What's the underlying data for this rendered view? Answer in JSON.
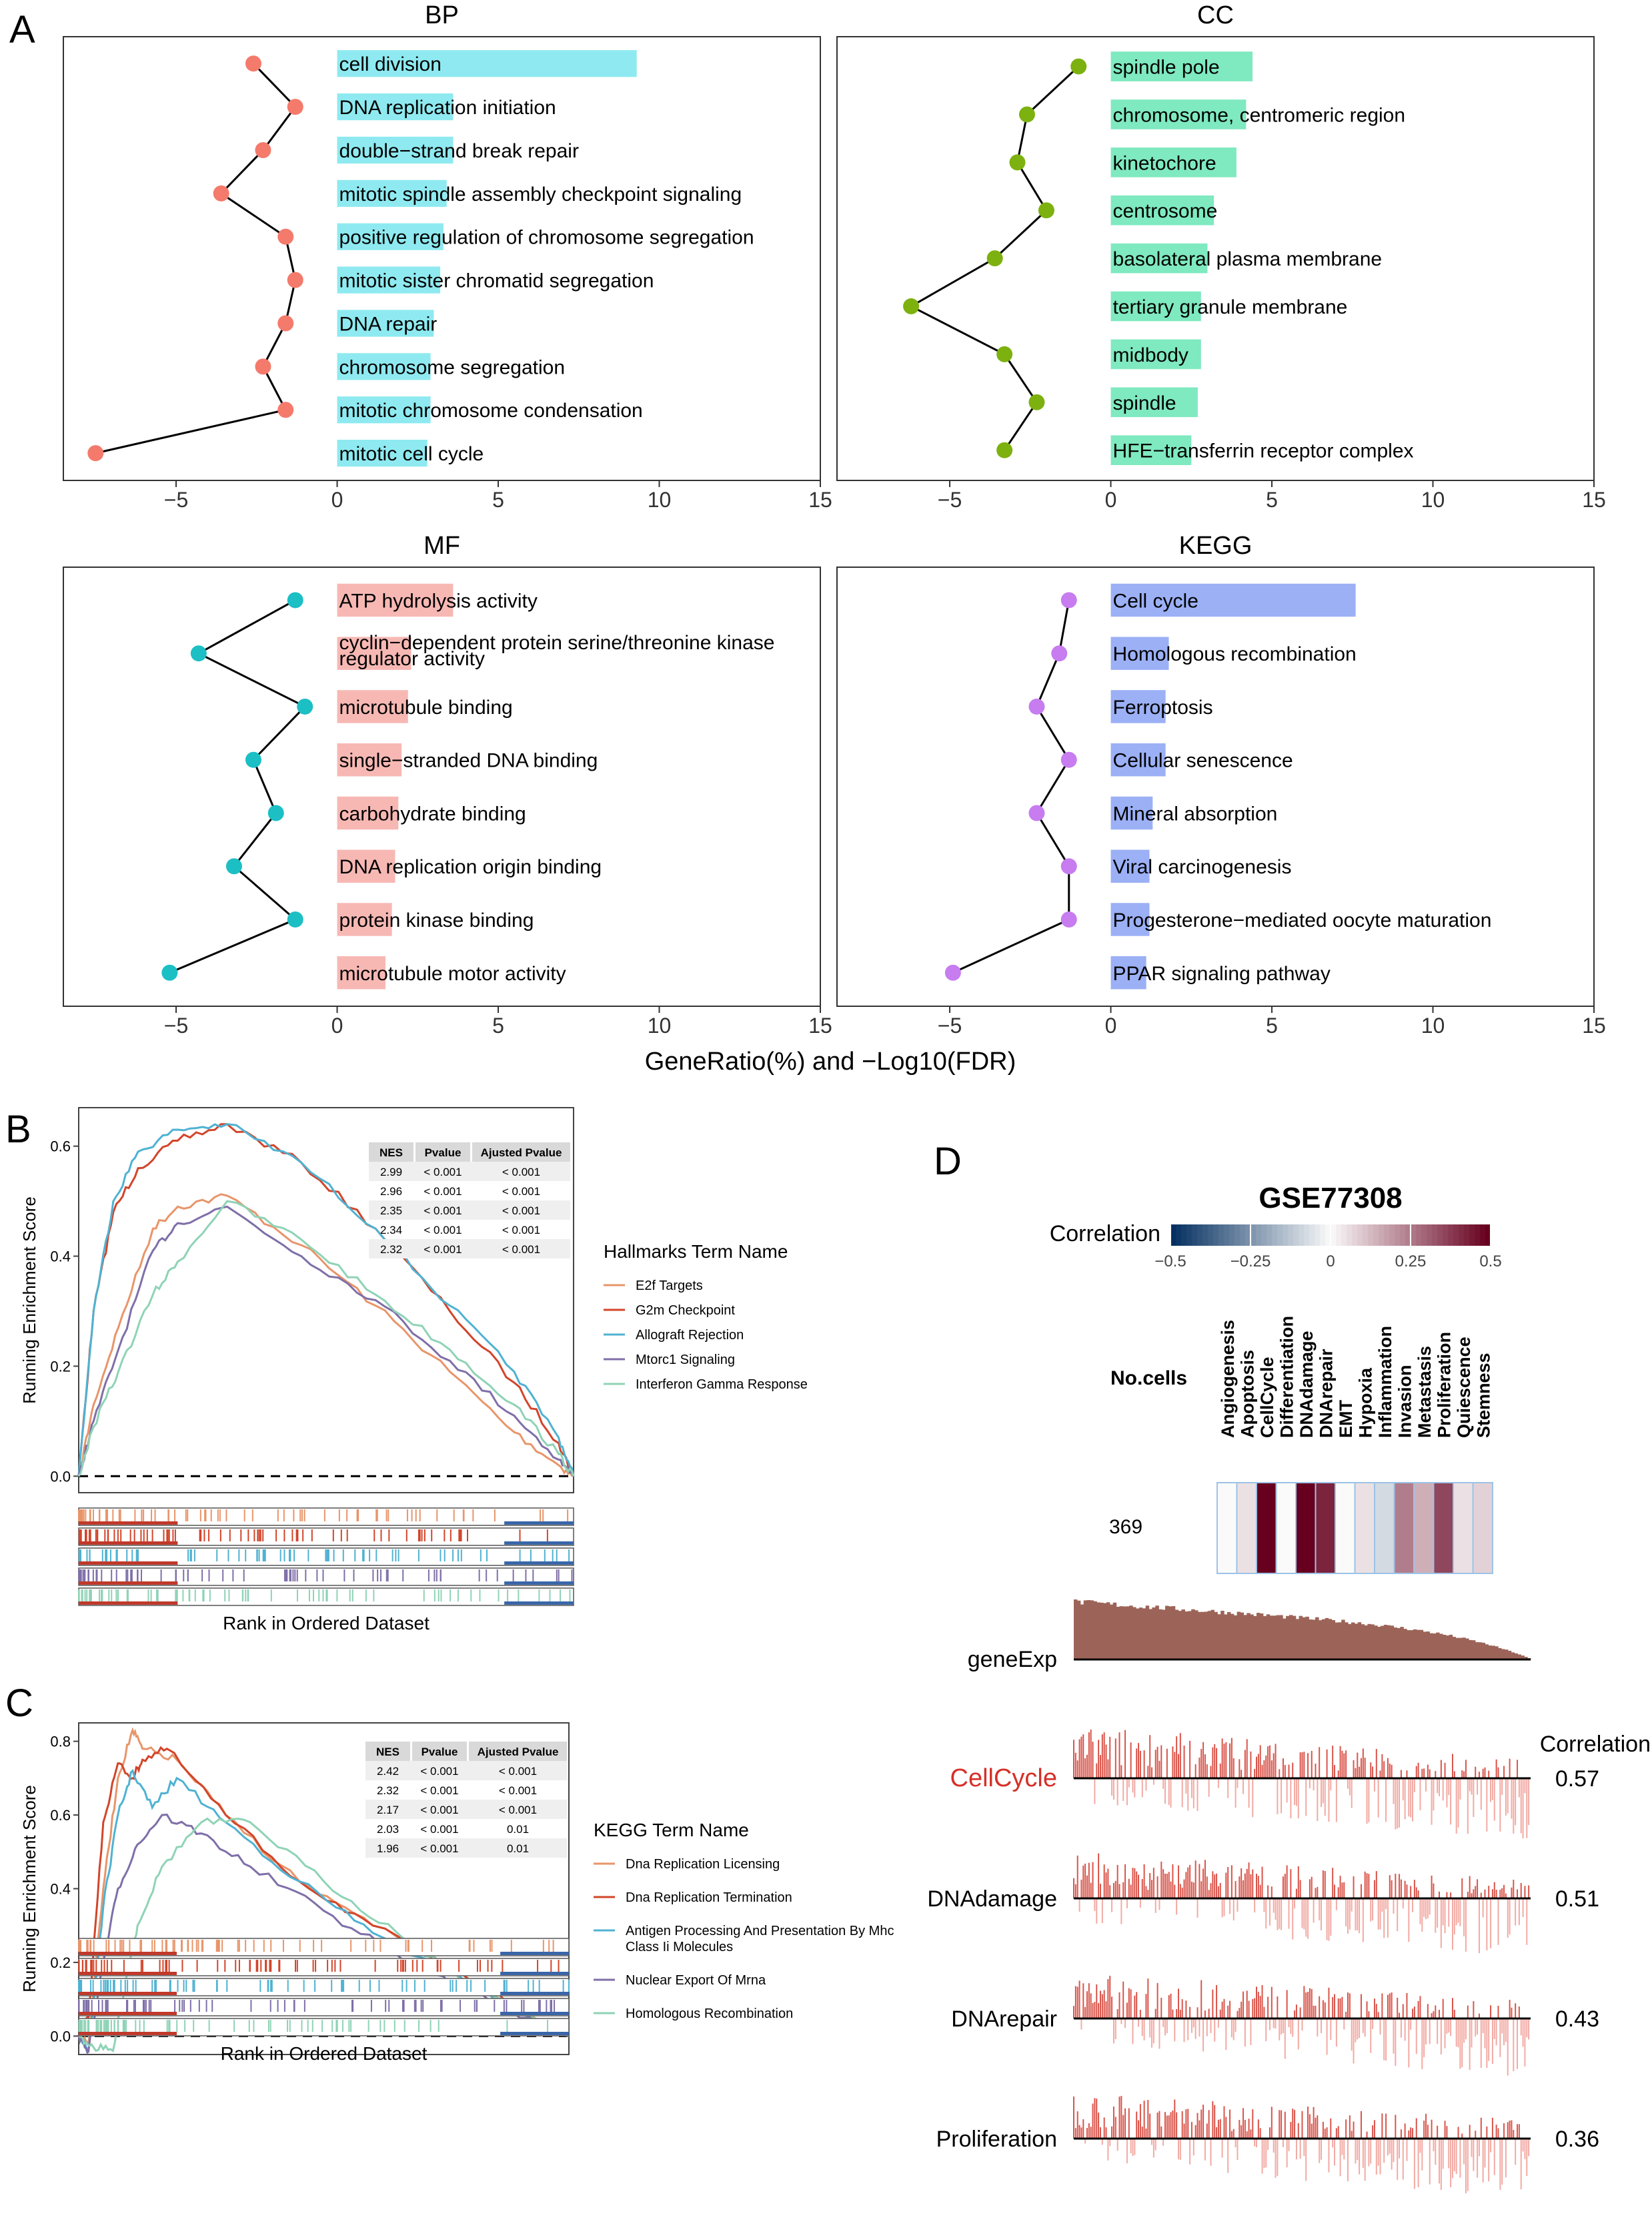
{
  "panel_labels": [
    "A",
    "B",
    "C",
    "D"
  ],
  "chart_data": [
    {
      "type": "bar",
      "panel": "A",
      "title": "BP",
      "bar_color": "#8eeaf0",
      "dot_color": "#f47a6c",
      "terms": [
        "cell division",
        "DNA replication initiation",
        "double−strand break repair",
        "mitotic spindle assembly checkpoint signaling",
        "positive regulation of chromosome segregation",
        "mitotic sister chromatid segregation",
        "DNA repair",
        "chromosome segregation",
        "mitotic chromosome condensation",
        "mitotic cell cycle"
      ],
      "gene_ratio": [
        9.3,
        3.6,
        3.6,
        3.4,
        3.3,
        3.2,
        3.0,
        2.9,
        2.9,
        2.8
      ],
      "neg_log10_fdr": [
        -2.6,
        -1.3,
        -2.3,
        -3.6,
        -1.6,
        -1.3,
        -1.6,
        -2.3,
        -1.6,
        -7.5
      ],
      "x_ticks": [
        -5,
        0,
        5,
        10,
        15
      ],
      "xlim": [
        -8.5,
        15
      ]
    },
    {
      "type": "bar",
      "panel": "A",
      "title": "CC",
      "bar_color": "#7fe9c0",
      "dot_color": "#7cb10f",
      "terms": [
        "spindle pole",
        "chromosome, centromeric region",
        "kinetochore",
        "centrosome",
        "basolateral plasma membrane",
        "tertiary granule membrane",
        "midbody",
        "spindle",
        "HFE−transferrin receptor complex"
      ],
      "gene_ratio": [
        4.4,
        4.2,
        3.9,
        3.2,
        3.0,
        2.8,
        2.8,
        2.7,
        2.5
      ],
      "neg_log10_fdr": [
        -1.0,
        -2.6,
        -2.9,
        -2.0,
        -3.6,
        -6.2,
        -3.3,
        -2.3,
        -3.3
      ],
      "x_ticks": [
        -5,
        0,
        5,
        10,
        15
      ],
      "xlim": [
        -8.5,
        15
      ]
    },
    {
      "type": "bar",
      "panel": "A",
      "title": "MF",
      "bar_color": "#f7b8b4",
      "dot_color": "#1cbfc4",
      "terms": [
        "ATP hydrolysis activity",
        "cyclin−dependent protein serine/threonine kinase regulator activity",
        "microtubule binding",
        "single−stranded DNA binding",
        "carbohydrate binding",
        "DNA replication origin binding",
        "protein kinase binding",
        "microtubule motor activity"
      ],
      "gene_ratio": [
        3.6,
        2.3,
        2.2,
        2.0,
        1.9,
        1.8,
        1.7,
        1.5
      ],
      "neg_log10_fdr": [
        -1.3,
        -4.3,
        -1.0,
        -2.6,
        -1.9,
        -3.2,
        -1.3,
        -5.2
      ],
      "x_ticks": [
        -5,
        0,
        5,
        10,
        15
      ],
      "xlim": [
        -8.5,
        15
      ]
    },
    {
      "type": "bar",
      "panel": "A",
      "title": "KEGG",
      "bar_color": "#9bb0f5",
      "dot_color": "#c77cf0",
      "terms": [
        "Cell cycle",
        "Homologous recombination",
        "Ferroptosis",
        "Cellular senescence",
        "Mineral absorption",
        "Viral carcinogenesis",
        "Progesterone−mediated oocyte maturation",
        "PPAR signaling pathway"
      ],
      "gene_ratio": [
        7.6,
        1.8,
        1.7,
        1.7,
        1.3,
        1.2,
        1.2,
        1.1
      ],
      "neg_log10_fdr": [
        -1.3,
        -1.6,
        -2.3,
        -1.3,
        -2.3,
        -1.3,
        -1.3,
        -4.9
      ],
      "x_ticks": [
        -5,
        0,
        5,
        10,
        15
      ],
      "xlim": [
        -8.5,
        15
      ]
    },
    {
      "type": "line",
      "panel": "B",
      "ylabel": "Running Enrichment Score",
      "xlabel": "Rank in Ordered Dataset",
      "y_ticks": [
        0.0,
        0.2,
        0.4,
        0.6
      ],
      "ylim": [
        -0.03,
        0.67
      ],
      "legend_title": "Hallmarks Term Name",
      "table_headers": [
        "NES",
        "Pvalue",
        "Ajusted Pvalue"
      ],
      "table_rows": [
        [
          "2.99",
          "< 0.001",
          "< 0.001"
        ],
        [
          "2.96",
          "< 0.001",
          "< 0.001"
        ],
        [
          "2.35",
          "< 0.001",
          "< 0.001"
        ],
        [
          "2.34",
          "< 0.001",
          "< 0.001"
        ],
        [
          "2.32",
          "< 0.001",
          "< 0.001"
        ]
      ],
      "series": [
        {
          "name": "E2f Targets",
          "color": "#e8956a",
          "x": [
            0,
            0.03,
            0.08,
            0.15,
            0.2,
            0.3,
            0.45,
            0.6,
            0.75,
            0.88,
            0.97,
            1.0
          ],
          "y": [
            0,
            0.13,
            0.27,
            0.45,
            0.49,
            0.51,
            0.42,
            0.31,
            0.19,
            0.08,
            0.02,
            0
          ]
        },
        {
          "name": "G2m Checkpoint",
          "color": "#d2452a",
          "x": [
            0,
            0.03,
            0.07,
            0.12,
            0.2,
            0.3,
            0.45,
            0.6,
            0.75,
            0.88,
            0.97,
            1.0
          ],
          "y": [
            0,
            0.3,
            0.48,
            0.56,
            0.61,
            0.64,
            0.57,
            0.45,
            0.3,
            0.17,
            0.06,
            0
          ]
        },
        {
          "name": "Allograft Rejection",
          "color": "#4fb2d2",
          "x": [
            0,
            0.03,
            0.07,
            0.12,
            0.2,
            0.3,
            0.45,
            0.6,
            0.75,
            0.88,
            0.97,
            1.0
          ],
          "y": [
            0,
            0.3,
            0.5,
            0.59,
            0.63,
            0.64,
            0.57,
            0.45,
            0.31,
            0.19,
            0.07,
            0
          ]
        },
        {
          "name": "Mtorc1 Signaling",
          "color": "#7f6fa8",
          "x": [
            0,
            0.03,
            0.08,
            0.15,
            0.2,
            0.3,
            0.45,
            0.6,
            0.75,
            0.88,
            0.97,
            1.0
          ],
          "y": [
            0,
            0.1,
            0.23,
            0.41,
            0.46,
            0.49,
            0.4,
            0.32,
            0.21,
            0.11,
            0.03,
            0
          ]
        },
        {
          "name": "Interferon Gamma Response",
          "color": "#8fd3b6",
          "x": [
            0,
            0.03,
            0.08,
            0.15,
            0.2,
            0.3,
            0.45,
            0.6,
            0.75,
            0.88,
            0.97,
            1.0
          ],
          "y": [
            0,
            0.09,
            0.19,
            0.33,
            0.39,
            0.5,
            0.43,
            0.33,
            0.23,
            0.13,
            0.04,
            0
          ]
        }
      ]
    },
    {
      "type": "line",
      "panel": "C",
      "ylabel": "Running Enrichment Score",
      "xlabel": "Rank in Ordered Dataset",
      "y_ticks": [
        0.0,
        0.2,
        0.4,
        0.6,
        0.8
      ],
      "ylim": [
        -0.05,
        0.85
      ],
      "legend_title": "KEGG Term Name",
      "table_headers": [
        "NES",
        "Pvalue",
        "Ajusted Pvalue"
      ],
      "table_rows": [
        [
          "2.42",
          "< 0.001",
          "< 0.001"
        ],
        [
          "2.32",
          "< 0.001",
          "< 0.001"
        ],
        [
          "2.17",
          "< 0.001",
          "< 0.001"
        ],
        [
          "2.03",
          "< 0.001",
          "0.01"
        ],
        [
          "1.96",
          "< 0.001",
          "0.01"
        ]
      ],
      "series": [
        {
          "name": "Dna Replication Licensing",
          "color": "#e8956a",
          "x": [
            0,
            0.02,
            0.05,
            0.08,
            0.11,
            0.13,
            0.2,
            0.3,
            0.45,
            0.6,
            0.8,
            1.0
          ],
          "y": [
            0,
            -0.02,
            0.4,
            0.7,
            0.83,
            0.78,
            0.75,
            0.6,
            0.42,
            0.3,
            0.15,
            0
          ]
        },
        {
          "name": "Dna Replication Termination",
          "color": "#d2452a",
          "x": [
            0,
            0.02,
            0.05,
            0.08,
            0.11,
            0.13,
            0.18,
            0.3,
            0.45,
            0.6,
            0.8,
            1.0
          ],
          "y": [
            0,
            0.05,
            0.58,
            0.74,
            0.7,
            0.75,
            0.78,
            0.6,
            0.42,
            0.3,
            0.15,
            0
          ]
        },
        {
          "name": "Antigen Processing And Presentation By Mhc Class Ii Molecules",
          "color": "#4fb2d2",
          "x": [
            0,
            0.02,
            0.05,
            0.08,
            0.11,
            0.15,
            0.2,
            0.3,
            0.45,
            0.6,
            0.8,
            1.0
          ],
          "y": [
            0,
            -0.04,
            0.35,
            0.6,
            0.72,
            0.62,
            0.7,
            0.58,
            0.42,
            0.28,
            0.14,
            0
          ]
        },
        {
          "name": "Nuclear Export Of Mrna",
          "color": "#7f6fa8",
          "x": [
            0,
            0.02,
            0.05,
            0.08,
            0.12,
            0.17,
            0.25,
            0.35,
            0.5,
            0.65,
            0.8,
            1.0
          ],
          "y": [
            0,
            -0.04,
            0.2,
            0.4,
            0.52,
            0.6,
            0.55,
            0.46,
            0.34,
            0.22,
            0.12,
            0
          ]
        },
        {
          "name": "Homologous Recombination",
          "color": "#8fd3b6",
          "x": [
            0,
            0.03,
            0.07,
            0.1,
            0.12,
            0.17,
            0.25,
            0.35,
            0.5,
            0.65,
            0.8,
            1.0
          ],
          "y": [
            0,
            -0.03,
            -0.04,
            0.18,
            0.3,
            0.46,
            0.58,
            0.58,
            0.42,
            0.28,
            0.14,
            0
          ]
        }
      ]
    },
    {
      "type": "heatmap",
      "panel": "D",
      "title": "GSE77308",
      "colorbar_label": "Correlation",
      "colorbar_ticks": [
        "−0.5",
        "−0.25",
        "0",
        "0.25",
        "0.5"
      ],
      "colorbar_range": [
        -0.5,
        0.5
      ],
      "row_label": "No.cells",
      "row_value": "369",
      "states": [
        "Angiogenesis",
        "Apoptosis",
        "CellCycle",
        "Differentiation",
        "DNAdamage",
        "DNArepair",
        "EMT",
        "Hypoxia",
        "Inflammation",
        "Invasion",
        "Metastasis",
        "Proliferation",
        "Quiescence",
        "Stemness"
      ],
      "correlations": [
        0.0,
        0.05,
        0.57,
        0.0,
        0.51,
        0.43,
        0.0,
        0.05,
        -0.08,
        0.25,
        0.15,
        0.36,
        0.05,
        0.08
      ]
    },
    {
      "type": "bar",
      "panel": "D",
      "gene_label": "geneExp",
      "correlation_header": "Correlation",
      "highlight_color": "#d62f27",
      "tracks": [
        {
          "name": "CellCycle",
          "correlation": "0.57"
        },
        {
          "name": "DNAdamage",
          "correlation": "0.51"
        },
        {
          "name": "DNArepair",
          "correlation": "0.43"
        },
        {
          "name": "Proliferation",
          "correlation": "0.36"
        }
      ]
    }
  ],
  "shared_xlabel": "GeneRatio(%)  and  −Log10(FDR)"
}
